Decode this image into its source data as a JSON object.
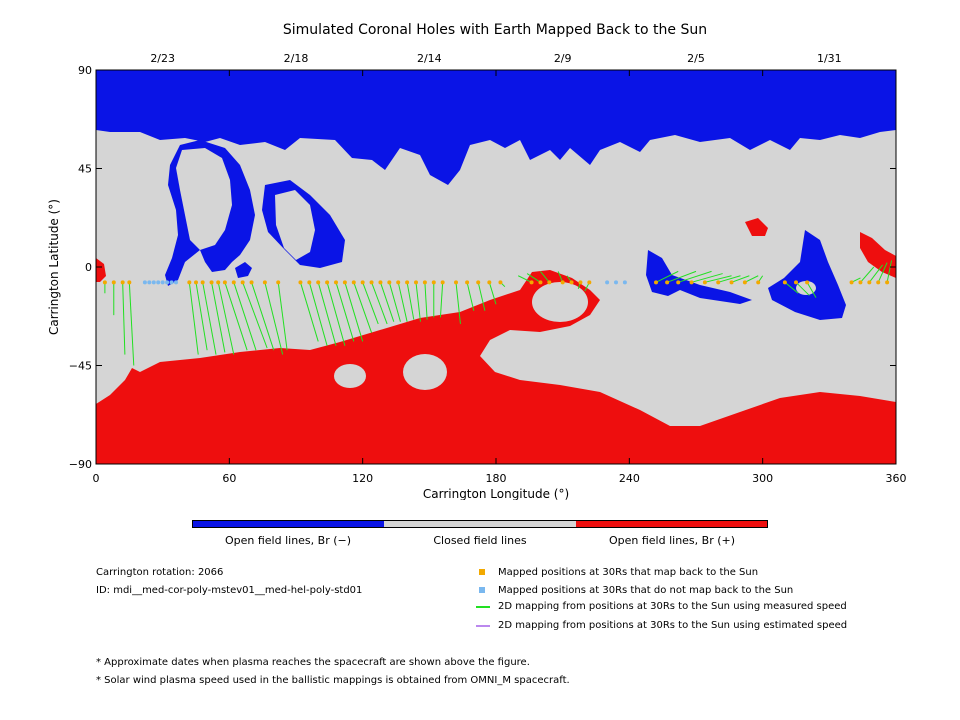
{
  "title": "Simulated Coronal Holes with Earth Mapped Back to the Sun",
  "colors": {
    "open_negative": "#0a14e6",
    "closed": "#d5d5d5",
    "open_positive": "#ee0e0e",
    "mapped_back": "#f2a900",
    "not_mapped": "#7ab8ef",
    "measured_speed": "#22e022",
    "estimated_speed": "#bb88ee"
  },
  "chart_data": {
    "type": "map",
    "title": "Simulated Coronal Holes with Earth Mapped Back to the Sun",
    "xlabel": "Carrington Longitude (°)",
    "ylabel": "Carrington Latitude (°)",
    "xlim": [
      0,
      360
    ],
    "ylim": [
      -90,
      90
    ],
    "xticks": [
      0,
      60,
      120,
      180,
      240,
      300,
      360
    ],
    "yticks": [
      -90,
      -45,
      0,
      45,
      90
    ],
    "top_dates": [
      {
        "lon": 30,
        "label": "2/23"
      },
      {
        "lon": 90,
        "label": "2/18"
      },
      {
        "lon": 150,
        "label": "2/14"
      },
      {
        "lon": 210,
        "label": "2/9"
      },
      {
        "lon": 270,
        "label": "2/5"
      },
      {
        "lon": 330,
        "label": "1/31"
      }
    ],
    "trace_latitude": -7,
    "mapped_points": [
      {
        "lon": 4,
        "to": [
          4,
          -12
        ]
      },
      {
        "lon": 8,
        "to": [
          8,
          -22
        ]
      },
      {
        "lon": 12,
        "to": [
          13,
          -40
        ]
      },
      {
        "lon": 15,
        "to": [
          17,
          -45
        ]
      },
      {
        "lon": 42,
        "to": [
          46,
          -40
        ]
      },
      {
        "lon": 45,
        "to": [
          50,
          -38
        ]
      },
      {
        "lon": 48,
        "to": [
          54,
          -40
        ]
      },
      {
        "lon": 52,
        "to": [
          58,
          -39
        ]
      },
      {
        "lon": 55,
        "to": [
          62,
          -40
        ]
      },
      {
        "lon": 58,
        "to": [
          68,
          -38
        ]
      },
      {
        "lon": 62,
        "to": [
          72,
          -38
        ]
      },
      {
        "lon": 66,
        "to": [
          77,
          -37
        ]
      },
      {
        "lon": 70,
        "to": [
          80,
          -38
        ]
      },
      {
        "lon": 76,
        "to": [
          84,
          -40
        ]
      },
      {
        "lon": 82,
        "to": [
          86,
          -38
        ]
      },
      {
        "lon": 92,
        "to": [
          100,
          -34
        ]
      },
      {
        "lon": 96,
        "to": [
          104,
          -36
        ]
      },
      {
        "lon": 100,
        "to": [
          108,
          -36
        ]
      },
      {
        "lon": 104,
        "to": [
          112,
          -36
        ]
      },
      {
        "lon": 108,
        "to": [
          116,
          -34
        ]
      },
      {
        "lon": 112,
        "to": [
          120,
          -34
        ]
      },
      {
        "lon": 116,
        "to": [
          124,
          -30
        ]
      },
      {
        "lon": 120,
        "to": [
          127,
          -26
        ]
      },
      {
        "lon": 124,
        "to": [
          131,
          -26
        ]
      },
      {
        "lon": 128,
        "to": [
          134,
          -25
        ]
      },
      {
        "lon": 132,
        "to": [
          137,
          -25
        ]
      },
      {
        "lon": 136,
        "to": [
          140,
          -25
        ]
      },
      {
        "lon": 140,
        "to": [
          143,
          -24
        ]
      },
      {
        "lon": 144,
        "to": [
          146,
          -25
        ]
      },
      {
        "lon": 148,
        "to": [
          149,
          -24
        ]
      },
      {
        "lon": 152,
        "to": [
          152,
          -23
        ]
      },
      {
        "lon": 156,
        "to": [
          155,
          -23
        ]
      },
      {
        "lon": 162,
        "to": [
          164,
          -26
        ]
      },
      {
        "lon": 167,
        "to": [
          170,
          -20
        ]
      },
      {
        "lon": 172,
        "to": [
          175,
          -20
        ]
      },
      {
        "lon": 177,
        "to": [
          180,
          -17
        ]
      },
      {
        "lon": 182,
        "to": [
          184,
          -9
        ]
      },
      {
        "lon": 196,
        "to": [
          190,
          -4
        ]
      },
      {
        "lon": 200,
        "to": [
          194,
          -3
        ]
      },
      {
        "lon": 204,
        "to": [
          200,
          -2
        ]
      },
      {
        "lon": 210,
        "to": [
          208,
          -2
        ]
      },
      {
        "lon": 214,
        "to": [
          212,
          -4
        ]
      },
      {
        "lon": 218,
        "to": [
          217,
          -10
        ]
      },
      {
        "lon": 222,
        "to": [
          220,
          -11
        ]
      },
      {
        "lon": 252,
        "to": [
          262,
          -2
        ]
      },
      {
        "lon": 257,
        "to": [
          270,
          -2
        ]
      },
      {
        "lon": 262,
        "to": [
          277,
          -2
        ]
      },
      {
        "lon": 268,
        "to": [
          282,
          -3
        ]
      },
      {
        "lon": 274,
        "to": [
          286,
          -4
        ]
      },
      {
        "lon": 280,
        "to": [
          290,
          -4
        ]
      },
      {
        "lon": 286,
        "to": [
          294,
          -4
        ]
      },
      {
        "lon": 292,
        "to": [
          298,
          -4
        ]
      },
      {
        "lon": 298,
        "to": [
          300,
          -4
        ]
      },
      {
        "lon": 310,
        "to": [
          316,
          -12
        ]
      },
      {
        "lon": 315,
        "to": [
          321,
          -13
        ]
      },
      {
        "lon": 320,
        "to": [
          324,
          -14
        ]
      },
      {
        "lon": 340,
        "to": [
          344,
          -5
        ]
      },
      {
        "lon": 344,
        "to": [
          350,
          0
        ]
      },
      {
        "lon": 348,
        "to": [
          354,
          1
        ]
      },
      {
        "lon": 352,
        "to": [
          356,
          2
        ]
      },
      {
        "lon": 356,
        "to": [
          358,
          3
        ]
      }
    ],
    "unmapped_points": [
      22,
      24,
      26,
      28,
      30,
      32,
      34,
      36,
      230,
      234,
      238
    ]
  },
  "legend_bar": {
    "neg": "Open field lines, Br (−)",
    "closed": "Closed field lines",
    "pos": "Open field lines, Br (+)"
  },
  "info": {
    "rotation": "Carrington rotation: 2066",
    "id": "ID: mdi__med-cor-poly-mstev01__med-hel-poly-std01"
  },
  "legend": {
    "mapped": "Mapped positions at 30Rs that map back to the Sun",
    "unmapped": "Mapped positions at 30Rs that do not map back to the Sun",
    "measured": "2D mapping from positions at 30Rs to the Sun using measured speed",
    "estimated": "2D mapping from positions at 30Rs to the Sun using estimated speed"
  },
  "notes": {
    "n1": "* Approximate dates when plasma reaches the spacecraft are shown above the figure.",
    "n2": "* Solar wind plasma speed used in the ballistic mappings is obtained from OMNI_M spacecraft."
  }
}
